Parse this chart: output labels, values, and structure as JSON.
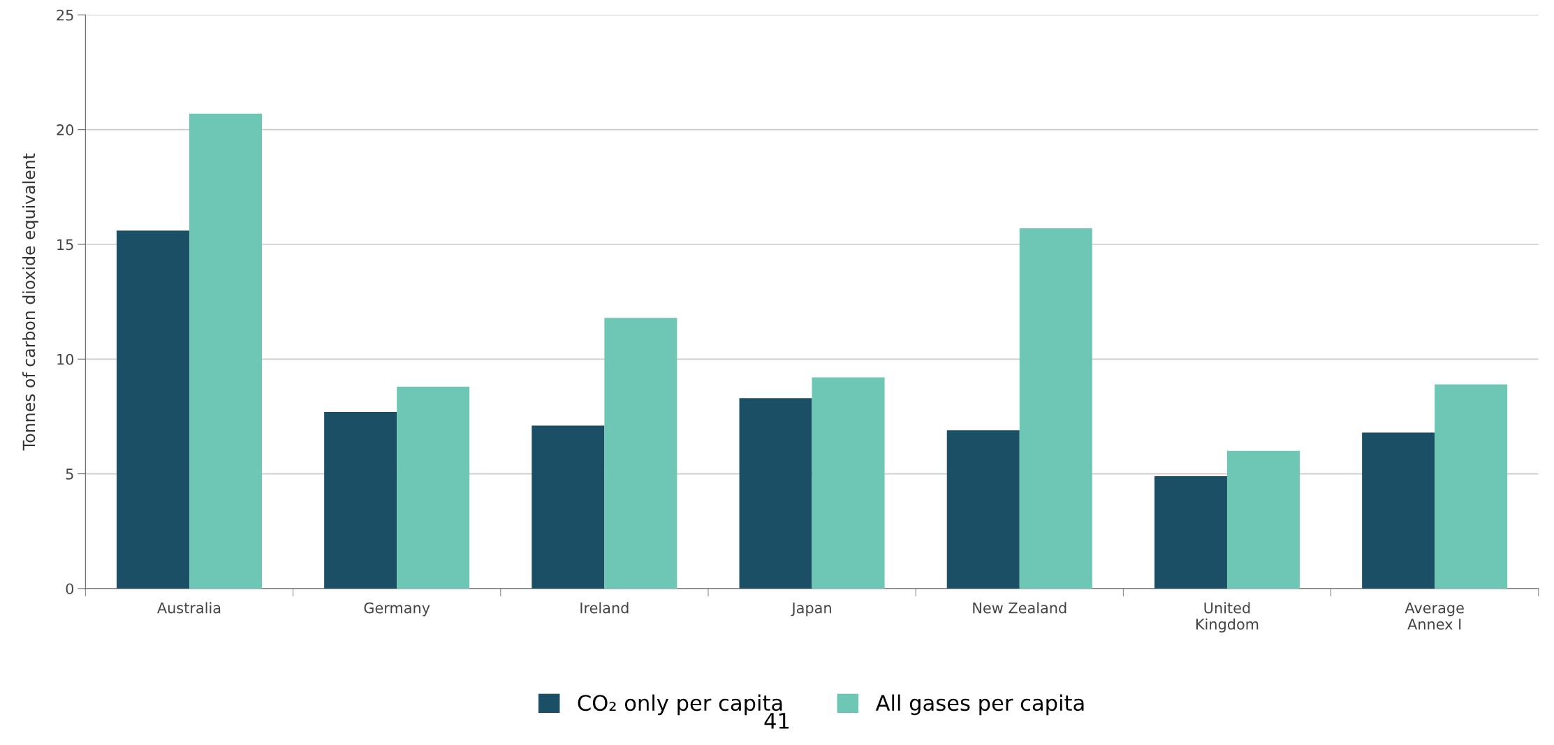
{
  "chart_data": {
    "type": "bar",
    "ylabel": "Tonnes of carbon dioxide equivalent",
    "categories": [
      "Australia",
      "Germany",
      "Ireland",
      "Japan",
      "New Zealand",
      "United\nKingdom",
      "Average\nAnnex I"
    ],
    "series": [
      {
        "name": "CO₂ only per capita",
        "color": "#1b4f66",
        "values": [
          15.6,
          7.7,
          7.1,
          8.3,
          6.9,
          4.9,
          6.8
        ]
      },
      {
        "name": "All gases per capita",
        "color": "#6ec6b4",
        "values": [
          20.7,
          8.8,
          11.8,
          9.2,
          15.7,
          6.0,
          8.9
        ]
      }
    ],
    "ylim": [
      0,
      25
    ],
    "yticks": [
      0,
      5,
      10,
      15,
      20,
      25
    ],
    "grid": "y",
    "legend": "bottom",
    "annotations": [
      "41"
    ]
  }
}
